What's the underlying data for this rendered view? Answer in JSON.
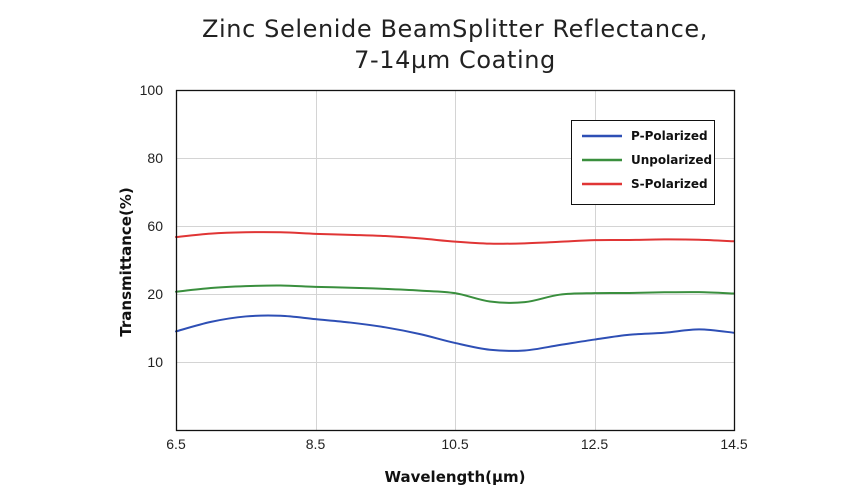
{
  "chart_data": {
    "type": "line",
    "title_lines": [
      "Zinc Selenide BeamSplitter Reflectance,",
      "7-14µm Coating"
    ],
    "xlabel": "Wavelength(µm)",
    "ylabel": "Transmittance(%)",
    "x_ticks": [
      "6.5",
      "8.5",
      "10.5",
      "12.5",
      "14.5"
    ],
    "y_ticks": [
      "10",
      "20",
      "60",
      "80",
      "100"
    ],
    "xlim": [
      6.5,
      14.5
    ],
    "grid": true,
    "legend_position": "top-right",
    "x": [
      6.5,
      7.0,
      7.5,
      8.0,
      8.5,
      9.0,
      9.5,
      10.0,
      10.5,
      11.0,
      11.5,
      12.0,
      12.5,
      13.0,
      13.5,
      14.0,
      14.5
    ],
    "series": [
      {
        "name": "P-Polarized",
        "color": "#2e4fb5",
        "values": [
          14.5,
          15.9,
          16.7,
          16.8,
          16.3,
          15.8,
          15.1,
          14.1,
          12.8,
          11.8,
          11.7,
          12.5,
          13.3,
          14.0,
          14.3,
          14.8,
          14.3
        ]
      },
      {
        "name": "Unpolarized",
        "color": "#3a8f3e",
        "values": [
          21.3,
          23.5,
          24.6,
          25.0,
          24.2,
          23.7,
          23.0,
          22.0,
          20.5,
          18.9,
          18.8,
          19.9,
          20.5,
          20.6,
          21.0,
          21.1,
          20.3
        ]
      },
      {
        "name": "S-Polarized",
        "color": "#e03535",
        "values": [
          53.5,
          55.5,
          56.3,
          56.3,
          55.4,
          54.8,
          54.1,
          52.7,
          50.8,
          49.6,
          49.8,
          50.7,
          51.7,
          51.8,
          52.1,
          51.9,
          51.0
        ]
      }
    ]
  }
}
